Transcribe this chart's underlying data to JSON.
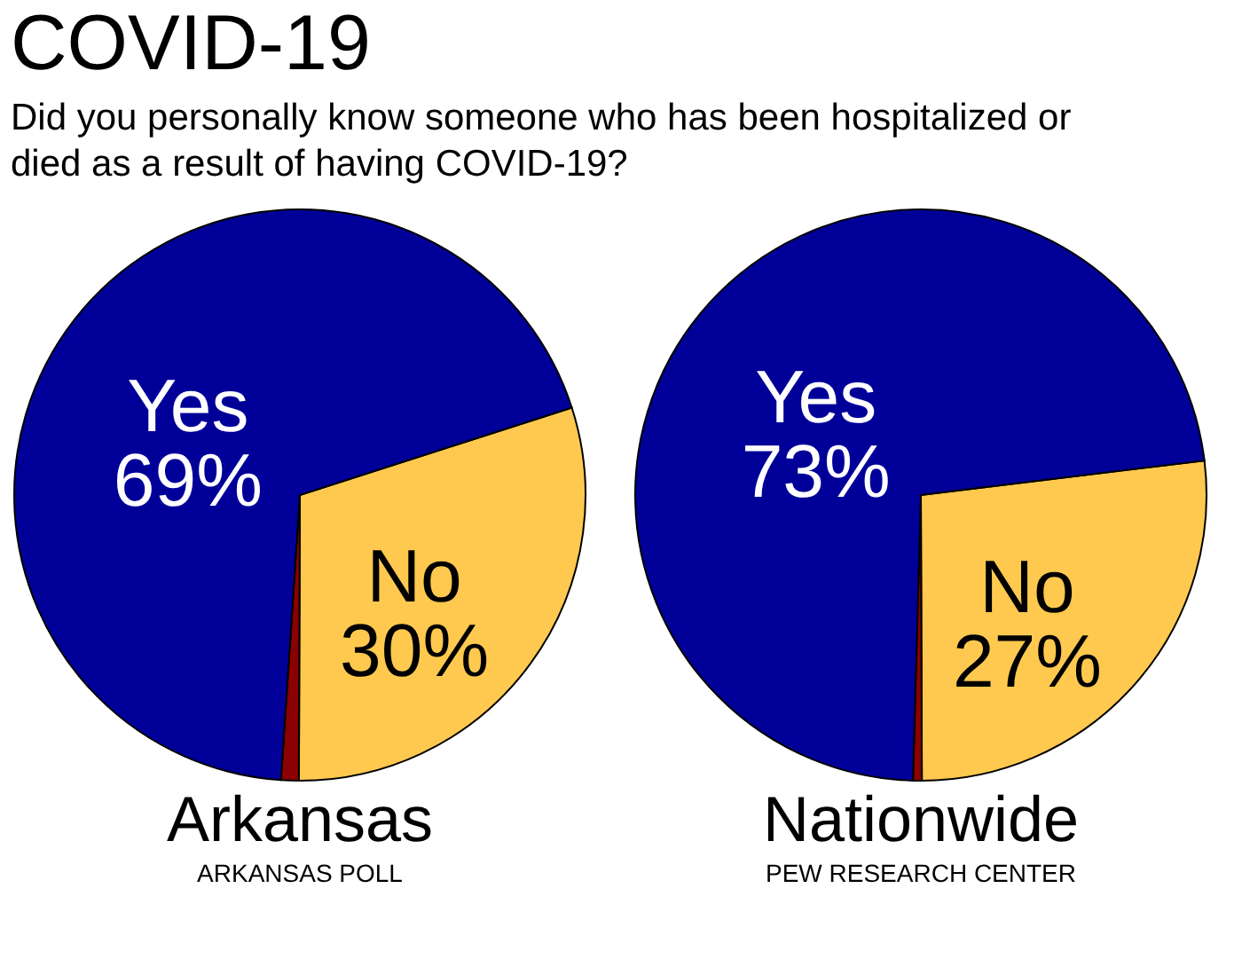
{
  "chart_data": [
    {
      "type": "pie",
      "title": "COVID-19",
      "subtitle": "Did you personally know someone who has been hospitalized or died as a result of having COVID-19?",
      "xlabel": "Arkansas",
      "annotations": [
        "ARKANSAS POLL"
      ],
      "categories": [
        "No",
        null,
        "Yes"
      ],
      "values": [
        30,
        1,
        69
      ],
      "value_labels": [
        "30%",
        null,
        "69%"
      ],
      "colors": [
        "#ffc94f",
        "#8b0000",
        "#000099"
      ],
      "legend": false
    },
    {
      "type": "pie",
      "xlabel": "Nationwide",
      "annotations": [
        "PEW RESEARCH CENTER"
      ],
      "categories": [
        "No",
        null,
        "Yes"
      ],
      "values": [
        27,
        0.5,
        73
      ],
      "value_labels": [
        "27%",
        null,
        "73%"
      ],
      "colors": [
        "#ffc94f",
        "#8b0000",
        "#000099"
      ],
      "legend": false
    }
  ]
}
